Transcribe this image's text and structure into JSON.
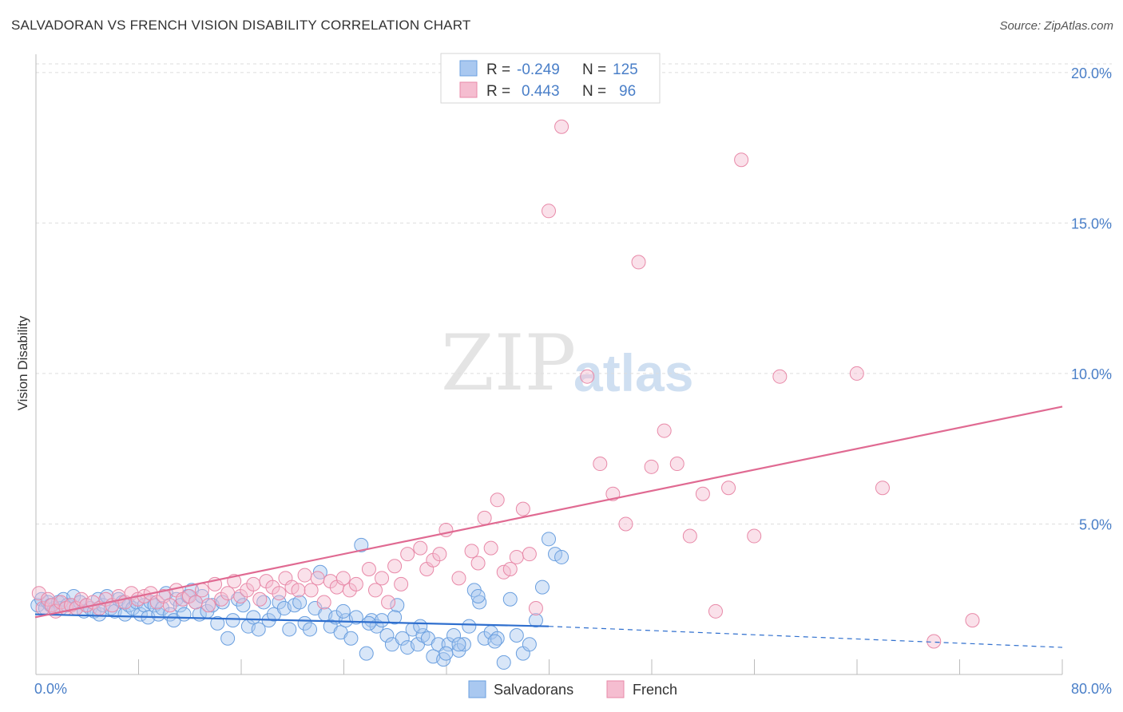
{
  "title": "SALVADORAN VS FRENCH VISION DISABILITY CORRELATION CHART",
  "source": "Source: ZipAtlas.com",
  "watermark": {
    "zip": "ZIP",
    "atlas": "atlas"
  },
  "chart_data": {
    "type": "scatter",
    "ylabel": "Vision Disability",
    "xlim": [
      0,
      80
    ],
    "ylim": [
      0,
      20.5
    ],
    "x_tick_labels": [
      "0.0%",
      "80.0%"
    ],
    "y_ticks": [
      5,
      10,
      15,
      20
    ],
    "y_tick_labels": [
      "5.0%",
      "10.0%",
      "15.0%",
      "20.0%"
    ],
    "grid": true,
    "legend_position": "top-center",
    "legend": [
      {
        "name": "Salvadorans",
        "r_label": "R =",
        "r": "-0.249",
        "n_label": "N =",
        "n": "125",
        "color": "#6a9fdf",
        "fill": "#a9c8f0"
      },
      {
        "name": "French",
        "r_label": "R =",
        "r": "0.443",
        "n_label": "N =",
        "n": "96",
        "color": "#e889a8",
        "fill": "#f5bdd0"
      }
    ],
    "series": [
      {
        "name": "Salvadorans",
        "color": "#6a9fdf",
        "trend": {
          "x0": 0,
          "y0": 2.0,
          "x1": 40,
          "y1": 1.6,
          "dash_to_x": 80,
          "dash_to_y": 0.9,
          "color": "#2f6fce"
        },
        "points": [
          [
            0.2,
            2.3
          ],
          [
            0.5,
            2.5
          ],
          [
            0.8,
            2.2
          ],
          [
            1.0,
            2.4
          ],
          [
            1.2,
            2.3
          ],
          [
            1.5,
            2.2
          ],
          [
            1.8,
            2.4
          ],
          [
            2.0,
            2.2
          ],
          [
            2.2,
            2.5
          ],
          [
            2.5,
            2.3
          ],
          [
            2.8,
            2.3
          ],
          [
            3.0,
            2.6
          ],
          [
            3.2,
            2.2
          ],
          [
            3.5,
            2.4
          ],
          [
            3.8,
            2.1
          ],
          [
            4.0,
            2.3
          ],
          [
            4.3,
            2.2
          ],
          [
            4.6,
            2.1
          ],
          [
            4.9,
            2.5
          ],
          [
            5.0,
            2.0
          ],
          [
            5.3,
            2.3
          ],
          [
            5.6,
            2.6
          ],
          [
            5.9,
            2.2
          ],
          [
            6.2,
            2.1
          ],
          [
            6.5,
            2.5
          ],
          [
            6.8,
            2.4
          ],
          [
            7.0,
            2.0
          ],
          [
            7.3,
            2.3
          ],
          [
            7.6,
            2.2
          ],
          [
            7.9,
            2.4
          ],
          [
            8.2,
            2.0
          ],
          [
            8.5,
            2.3
          ],
          [
            8.8,
            1.9
          ],
          [
            9.0,
            2.4
          ],
          [
            9.3,
            2.3
          ],
          [
            9.6,
            2.0
          ],
          [
            9.9,
            2.2
          ],
          [
            10.2,
            2.7
          ],
          [
            10.5,
            2.0
          ],
          [
            10.8,
            1.8
          ],
          [
            11.0,
            2.5
          ],
          [
            11.3,
            2.3
          ],
          [
            11.6,
            2.0
          ],
          [
            11.9,
            2.6
          ],
          [
            12.2,
            2.8
          ],
          [
            12.5,
            2.4
          ],
          [
            12.8,
            2.0
          ],
          [
            13.0,
            2.6
          ],
          [
            13.4,
            2.1
          ],
          [
            13.8,
            2.3
          ],
          [
            14.2,
            1.7
          ],
          [
            14.6,
            2.4
          ],
          [
            15.0,
            1.2
          ],
          [
            15.4,
            1.8
          ],
          [
            15.8,
            2.5
          ],
          [
            16.2,
            2.3
          ],
          [
            16.6,
            1.6
          ],
          [
            17.0,
            1.9
          ],
          [
            17.4,
            1.5
          ],
          [
            17.8,
            2.4
          ],
          [
            18.2,
            1.8
          ],
          [
            18.6,
            2.0
          ],
          [
            19.0,
            2.4
          ],
          [
            19.4,
            2.2
          ],
          [
            19.8,
            1.5
          ],
          [
            20.2,
            2.3
          ],
          [
            20.6,
            2.4
          ],
          [
            21.0,
            1.7
          ],
          [
            21.4,
            1.5
          ],
          [
            21.8,
            2.2
          ],
          [
            22.2,
            3.4
          ],
          [
            22.6,
            2.0
          ],
          [
            23.0,
            1.6
          ],
          [
            23.4,
            1.9
          ],
          [
            23.8,
            1.4
          ],
          [
            24.2,
            1.8
          ],
          [
            24.6,
            1.2
          ],
          [
            25.0,
            1.9
          ],
          [
            25.4,
            4.3
          ],
          [
            25.8,
            0.7
          ],
          [
            26.2,
            1.8
          ],
          [
            26.6,
            1.6
          ],
          [
            27.0,
            1.8
          ],
          [
            27.4,
            1.3
          ],
          [
            27.8,
            1.0
          ],
          [
            28.2,
            2.3
          ],
          [
            28.6,
            1.2
          ],
          [
            29.0,
            0.9
          ],
          [
            29.4,
            1.5
          ],
          [
            29.8,
            1.0
          ],
          [
            30.2,
            1.3
          ],
          [
            30.6,
            1.2
          ],
          [
            31.0,
            0.6
          ],
          [
            31.4,
            1.0
          ],
          [
            31.8,
            0.5
          ],
          [
            32.2,
            1.0
          ],
          [
            32.6,
            1.3
          ],
          [
            33.0,
            0.8
          ],
          [
            33.4,
            1.0
          ],
          [
            33.8,
            1.6
          ],
          [
            34.2,
            2.8
          ],
          [
            34.6,
            2.4
          ],
          [
            35.0,
            1.2
          ],
          [
            35.5,
            1.4
          ],
          [
            36.0,
            1.2
          ],
          [
            36.5,
            0.4
          ],
          [
            37.0,
            2.5
          ],
          [
            37.5,
            1.3
          ],
          [
            38.0,
            0.7
          ],
          [
            38.5,
            1.0
          ],
          [
            39.0,
            1.8
          ],
          [
            39.5,
            2.9
          ],
          [
            40.0,
            4.5
          ],
          [
            40.5,
            4.0
          ],
          [
            41.0,
            3.9
          ],
          [
            34.5,
            2.6
          ],
          [
            35.8,
            1.1
          ],
          [
            33.0,
            1.0
          ],
          [
            32.0,
            0.7
          ],
          [
            30.0,
            1.6
          ],
          [
            28.0,
            1.9
          ],
          [
            26.0,
            1.7
          ],
          [
            24.0,
            2.1
          ]
        ]
      },
      {
        "name": "French",
        "color": "#e889a8",
        "trend": {
          "x0": 0,
          "y0": 1.9,
          "x1": 80,
          "y1": 8.9,
          "color": "#e06a92"
        },
        "points": [
          [
            0.3,
            2.7
          ],
          [
            0.6,
            2.2
          ],
          [
            1.0,
            2.5
          ],
          [
            1.3,
            2.3
          ],
          [
            1.6,
            2.1
          ],
          [
            2.0,
            2.4
          ],
          [
            2.4,
            2.2
          ],
          [
            2.8,
            2.3
          ],
          [
            3.2,
            2.2
          ],
          [
            3.6,
            2.5
          ],
          [
            4.0,
            2.3
          ],
          [
            4.5,
            2.4
          ],
          [
            5.0,
            2.2
          ],
          [
            5.5,
            2.5
          ],
          [
            6.0,
            2.3
          ],
          [
            6.5,
            2.6
          ],
          [
            7.0,
            2.4
          ],
          [
            7.5,
            2.7
          ],
          [
            8.0,
            2.5
          ],
          [
            8.5,
            2.6
          ],
          [
            9.0,
            2.7
          ],
          [
            9.5,
            2.4
          ],
          [
            10.0,
            2.6
          ],
          [
            10.5,
            2.3
          ],
          [
            11.0,
            2.8
          ],
          [
            11.5,
            2.5
          ],
          [
            12.0,
            2.6
          ],
          [
            12.5,
            2.4
          ],
          [
            13.0,
            2.8
          ],
          [
            13.5,
            2.3
          ],
          [
            14.0,
            3.0
          ],
          [
            14.5,
            2.5
          ],
          [
            15.0,
            2.7
          ],
          [
            15.5,
            3.1
          ],
          [
            16.0,
            2.6
          ],
          [
            16.5,
            2.8
          ],
          [
            17.0,
            3.0
          ],
          [
            17.5,
            2.5
          ],
          [
            18.0,
            3.1
          ],
          [
            18.5,
            2.9
          ],
          [
            19.0,
            2.7
          ],
          [
            19.5,
            3.2
          ],
          [
            20.0,
            2.9
          ],
          [
            20.5,
            2.8
          ],
          [
            21.0,
            3.3
          ],
          [
            21.5,
            2.8
          ],
          [
            22.0,
            3.2
          ],
          [
            22.5,
            2.4
          ],
          [
            23.0,
            3.1
          ],
          [
            23.5,
            2.9
          ],
          [
            24.0,
            3.2
          ],
          [
            24.5,
            2.8
          ],
          [
            25.0,
            3.0
          ],
          [
            26.0,
            3.5
          ],
          [
            26.5,
            2.8
          ],
          [
            27.0,
            3.2
          ],
          [
            27.5,
            2.4
          ],
          [
            28.0,
            3.6
          ],
          [
            28.5,
            3.0
          ],
          [
            29.0,
            4.0
          ],
          [
            30.0,
            4.2
          ],
          [
            30.5,
            3.5
          ],
          [
            31.0,
            3.8
          ],
          [
            31.5,
            4.0
          ],
          [
            32.0,
            4.8
          ],
          [
            33.0,
            3.2
          ],
          [
            34.0,
            4.1
          ],
          [
            34.5,
            3.7
          ],
          [
            35.0,
            5.2
          ],
          [
            35.5,
            4.2
          ],
          [
            36.0,
            5.8
          ],
          [
            36.5,
            3.4
          ],
          [
            37.0,
            3.5
          ],
          [
            37.5,
            3.9
          ],
          [
            38.0,
            5.5
          ],
          [
            38.5,
            4.0
          ],
          [
            39.0,
            2.2
          ],
          [
            40.0,
            15.4
          ],
          [
            41.0,
            18.2
          ],
          [
            43.0,
            9.9
          ],
          [
            44.0,
            7.0
          ],
          [
            45.0,
            6.0
          ],
          [
            46.0,
            5.0
          ],
          [
            47.0,
            13.7
          ],
          [
            48.0,
            6.9
          ],
          [
            49.0,
            8.1
          ],
          [
            50.0,
            7.0
          ],
          [
            51.0,
            4.6
          ],
          [
            52.0,
            6.0
          ],
          [
            53.0,
            2.1
          ],
          [
            54.0,
            6.2
          ],
          [
            55.0,
            17.1
          ],
          [
            56.0,
            4.6
          ],
          [
            58.0,
            9.9
          ],
          [
            64.0,
            10.0
          ],
          [
            66.0,
            6.2
          ],
          [
            70.0,
            1.1
          ],
          [
            73.0,
            1.8
          ]
        ]
      }
    ]
  }
}
